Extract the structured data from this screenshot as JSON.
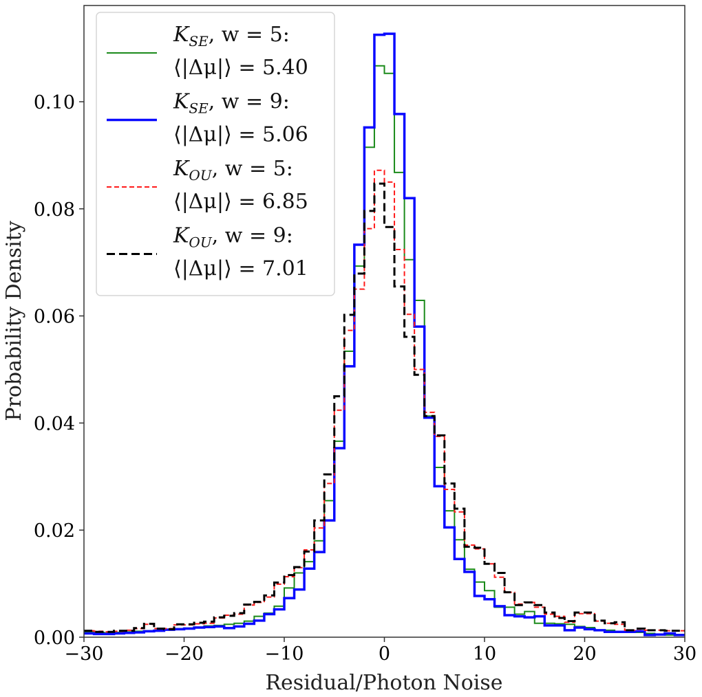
{
  "chart_data": {
    "type": "histogram-step",
    "title": "",
    "xlabel": "Residual/Photon Noise",
    "ylabel": "Probability Density",
    "xlim": [
      -30,
      30
    ],
    "ylim": [
      0,
      0.1175
    ],
    "xticks": [
      -30,
      -20,
      -10,
      0,
      10,
      20,
      30
    ],
    "xtick_labels": [
      "−30",
      "−20",
      "−10",
      "0",
      "10",
      "20",
      "30"
    ],
    "yticks": [
      0,
      0.02,
      0.04,
      0.06,
      0.08,
      0.1
    ],
    "ytick_labels": [
      "0.00",
      "0.02",
      "0.04",
      "0.06",
      "0.08",
      "0.10"
    ],
    "grid": false,
    "legend_position": "top-left",
    "bin_edges_start": -30,
    "bin_width": 1,
    "series": [
      {
        "name": "K_SE, w = 5",
        "legend": {
          "k": "K",
          "sub": "SE",
          "rest": ", w = 5:",
          "metric": "⟨|Δμ|⟩ = 5.40"
        },
        "color": "#1a8a1a",
        "style": "solid",
        "width": 2,
        "values": [
          0.001,
          0.0009,
          0.0008,
          0.0009,
          0.001,
          0.0011,
          0.0012,
          0.0013,
          0.0015,
          0.0016,
          0.0017,
          0.0019,
          0.0021,
          0.0022,
          0.0024,
          0.0026,
          0.003,
          0.0039,
          0.0045,
          0.0058,
          0.0092,
          0.012,
          0.0141,
          0.018,
          0.0255,
          0.0366,
          0.0534,
          0.0693,
          0.0915,
          0.1067,
          0.1053,
          0.0868,
          0.0705,
          0.0629,
          0.0413,
          0.0317,
          0.0236,
          0.0182,
          0.0127,
          0.0103,
          0.0087,
          0.0056,
          0.0056,
          0.0043,
          0.0048,
          0.0026,
          0.0026,
          0.0025,
          0.0024,
          0.002,
          0.0018,
          0.0013,
          0.0013,
          0.001,
          0.0009,
          0.0009,
          0.0007,
          0.0005,
          0.0004,
          0.0005
        ]
      },
      {
        "name": "K_SE, w = 9",
        "legend": {
          "k": "K",
          "sub": "SE",
          "rest": ", w = 9:",
          "metric": "⟨|Δμ|⟩ = 5.06"
        },
        "color": "#0a0aff",
        "style": "solid",
        "width": 3.5,
        "values": [
          0.0007,
          0.0006,
          0.0006,
          0.0007,
          0.0008,
          0.0009,
          0.0011,
          0.0012,
          0.0014,
          0.0015,
          0.0016,
          0.0018,
          0.0019,
          0.002,
          0.0017,
          0.002,
          0.0025,
          0.0031,
          0.0043,
          0.0052,
          0.0073,
          0.0089,
          0.0128,
          0.0159,
          0.0218,
          0.0353,
          0.0506,
          0.0733,
          0.0952,
          0.1125,
          0.1127,
          0.0977,
          0.082,
          0.058,
          0.041,
          0.0282,
          0.0205,
          0.0146,
          0.0122,
          0.0077,
          0.0071,
          0.0058,
          0.0041,
          0.0039,
          0.0037,
          0.0039,
          0.0022,
          0.0022,
          0.0013,
          0.0018,
          0.0015,
          0.0013,
          0.001,
          0.001,
          0.001,
          0.0011,
          0.0004,
          0.0005,
          0.0007,
          0.0004
        ]
      },
      {
        "name": "K_OU, w = 5",
        "legend": {
          "k": "K",
          "sub": "OU",
          "rest": ", w = 5:",
          "metric": "⟨|Δμ|⟩ = 6.85"
        },
        "color": "#ff1a1a",
        "style": "dashed-fine",
        "width": 2,
        "values": [
          0.0012,
          0.0011,
          0.001,
          0.0011,
          0.0013,
          0.0016,
          0.0024,
          0.0016,
          0.0016,
          0.0023,
          0.0023,
          0.0025,
          0.0026,
          0.0036,
          0.0041,
          0.0043,
          0.006,
          0.0065,
          0.0075,
          0.0099,
          0.0113,
          0.013,
          0.0163,
          0.0204,
          0.0287,
          0.0424,
          0.0573,
          0.065,
          0.0763,
          0.0872,
          0.085,
          0.0724,
          0.0603,
          0.05,
          0.042,
          0.0375,
          0.0276,
          0.0234,
          0.0172,
          0.0165,
          0.0137,
          0.0112,
          0.0084,
          0.0062,
          0.0065,
          0.0056,
          0.0043,
          0.0039,
          0.0028,
          0.0044,
          0.0044,
          0.003,
          0.0026,
          0.0024,
          0.0013,
          0.0015,
          0.0013,
          0.0013,
          0.0012,
          0.0012
        ]
      },
      {
        "name": "K_OU, w = 9",
        "legend": {
          "k": "K",
          "sub": "OU",
          "rest": ", w = 9:",
          "metric": "⟨|Δμ|⟩ = 7.01"
        },
        "color": "#000000",
        "style": "dashed",
        "width": 3,
        "values": [
          0.0012,
          0.001,
          0.001,
          0.0012,
          0.0012,
          0.0017,
          0.0025,
          0.0016,
          0.0015,
          0.0024,
          0.0024,
          0.0027,
          0.0029,
          0.0037,
          0.004,
          0.0045,
          0.0061,
          0.0066,
          0.0078,
          0.0102,
          0.0116,
          0.0131,
          0.016,
          0.0218,
          0.0304,
          0.045,
          0.0602,
          0.0679,
          0.0796,
          0.0847,
          0.0766,
          0.0655,
          0.0561,
          0.049,
          0.0413,
          0.0377,
          0.0287,
          0.024,
          0.0169,
          0.0167,
          0.0137,
          0.012,
          0.0084,
          0.006,
          0.0065,
          0.006,
          0.0046,
          0.0036,
          0.003,
          0.0046,
          0.0046,
          0.0031,
          0.0026,
          0.0028,
          0.0013,
          0.0016,
          0.0013,
          0.0013,
          0.0012,
          0.0012
        ]
      }
    ]
  }
}
